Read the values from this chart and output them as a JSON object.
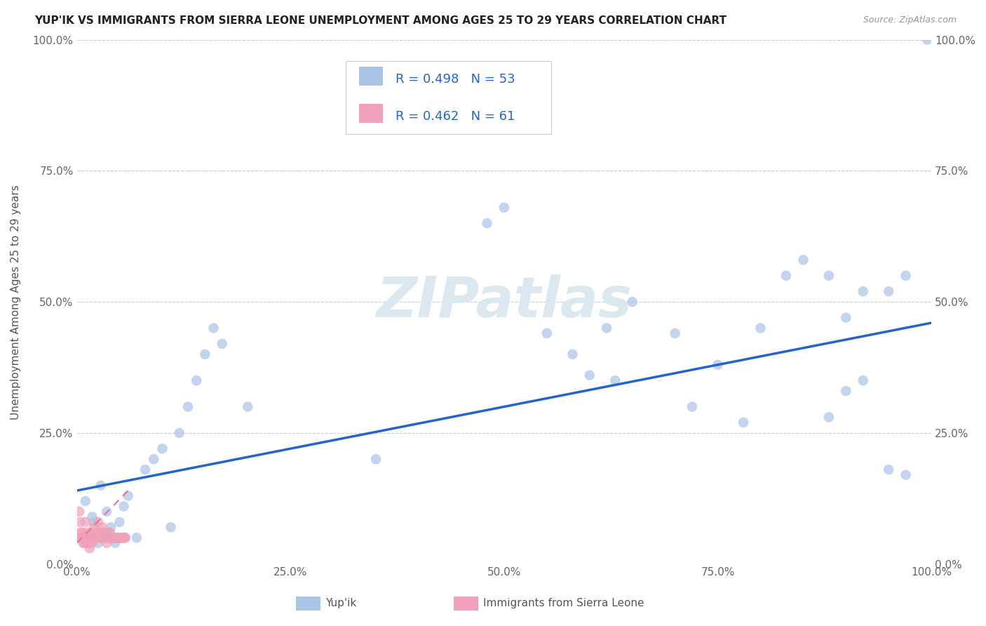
{
  "title": "YUP'IK VS IMMIGRANTS FROM SIERRA LEONE UNEMPLOYMENT AMONG AGES 25 TO 29 YEARS CORRELATION CHART",
  "source": "Source: ZipAtlas.com",
  "ylabel": "Unemployment Among Ages 25 to 29 years",
  "x_ticks": [
    0,
    25,
    50,
    75,
    100
  ],
  "x_tick_labels": [
    "0.0%",
    "25.0%",
    "50.0%",
    "75.0%",
    "100.0%"
  ],
  "y_ticks": [
    0,
    25,
    50,
    75,
    100
  ],
  "y_tick_labels": [
    "0.0%",
    "25.0%",
    "50.0%",
    "75.0%",
    "100.0%"
  ],
  "series1_label": "Yup'ik",
  "series2_label": "Immigrants from Sierra Leone",
  "series1_color": "#aac4e8",
  "series2_color": "#f0a0b8",
  "trendline1_color": "#2266cc",
  "trendline2_color": "#e87090",
  "background_color": "#ffffff",
  "watermark": "ZIPatlas",
  "watermark_color": "#dce8f0",
  "legend_r1": "R = 0.498",
  "legend_n1": "N = 53",
  "legend_r2": "R = 0.462",
  "legend_n2": "N = 61",
  "legend_text_color": "#2266cc",
  "series1_x": [
    1.5,
    2.0,
    2.5,
    3.0,
    3.5,
    4.0,
    1.0,
    1.8,
    2.8,
    3.8,
    4.5,
    5.0,
    5.5,
    6.0,
    7.0,
    8.0,
    9.0,
    10.0,
    11.0,
    12.0,
    13.0,
    14.0,
    15.0,
    16.0,
    17.0,
    20.0,
    35.0,
    48.0,
    50.0,
    55.0,
    58.0,
    60.0,
    62.0,
    65.0,
    70.0,
    72.0,
    75.0,
    78.0,
    80.0,
    83.0,
    85.0,
    88.0,
    90.0,
    92.0,
    95.0,
    97.0,
    99.5,
    63.0,
    88.0,
    92.0,
    95.0,
    97.0,
    90.0
  ],
  "series1_y": [
    5.0,
    8.0,
    4.0,
    6.0,
    10.0,
    7.0,
    12.0,
    9.0,
    15.0,
    6.0,
    4.0,
    8.0,
    11.0,
    13.0,
    5.0,
    18.0,
    20.0,
    22.0,
    7.0,
    25.0,
    30.0,
    35.0,
    40.0,
    45.0,
    42.0,
    30.0,
    20.0,
    65.0,
    68.0,
    44.0,
    40.0,
    36.0,
    45.0,
    50.0,
    44.0,
    30.0,
    38.0,
    27.0,
    45.0,
    55.0,
    58.0,
    28.0,
    33.0,
    52.0,
    18.0,
    17.0,
    100.0,
    35.0,
    55.0,
    35.0,
    52.0,
    55.0,
    47.0
  ],
  "series2_x": [
    0.3,
    0.5,
    0.5,
    0.8,
    1.0,
    1.0,
    1.2,
    1.5,
    1.5,
    1.8,
    2.0,
    2.0,
    2.2,
    2.5,
    2.5,
    0.3,
    0.4,
    0.6,
    0.7,
    0.8,
    0.9,
    1.1,
    1.3,
    1.4,
    1.6,
    1.7,
    1.9,
    2.1,
    2.3,
    2.4,
    2.6,
    2.7,
    2.9,
    3.0,
    3.1,
    3.2,
    3.3,
    3.4,
    3.5,
    3.6,
    3.7,
    3.8,
    3.9,
    4.0,
    4.1,
    4.2,
    4.3,
    4.4,
    4.5,
    4.6,
    4.7,
    4.8,
    4.9,
    5.0,
    5.1,
    5.2,
    5.3,
    5.4,
    5.5,
    5.6,
    5.7
  ],
  "series2_y": [
    5.0,
    5.0,
    6.0,
    4.0,
    5.0,
    8.0,
    4.0,
    3.0,
    5.0,
    4.0,
    5.0,
    7.0,
    5.0,
    5.0,
    8.0,
    10.0,
    8.0,
    6.0,
    5.0,
    4.0,
    5.0,
    6.0,
    5.0,
    4.0,
    6.0,
    5.0,
    5.0,
    6.0,
    5.0,
    5.0,
    6.0,
    5.0,
    5.0,
    7.0,
    5.0,
    5.0,
    6.0,
    5.0,
    4.0,
    5.0,
    5.0,
    5.0,
    6.0,
    5.0,
    5.0,
    5.0,
    5.0,
    5.0,
    5.0,
    5.0,
    5.0,
    5.0,
    5.0,
    5.0,
    5.0,
    5.0,
    5.0,
    5.0,
    5.0,
    5.0,
    5.0
  ],
  "trendline1_x0": 0,
  "trendline1_y0": 14,
  "trendline1_x1": 100,
  "trendline1_y1": 46,
  "trendline2_x0": 0,
  "trendline2_y0": 4,
  "trendline2_x1": 6,
  "trendline2_y1": 14
}
